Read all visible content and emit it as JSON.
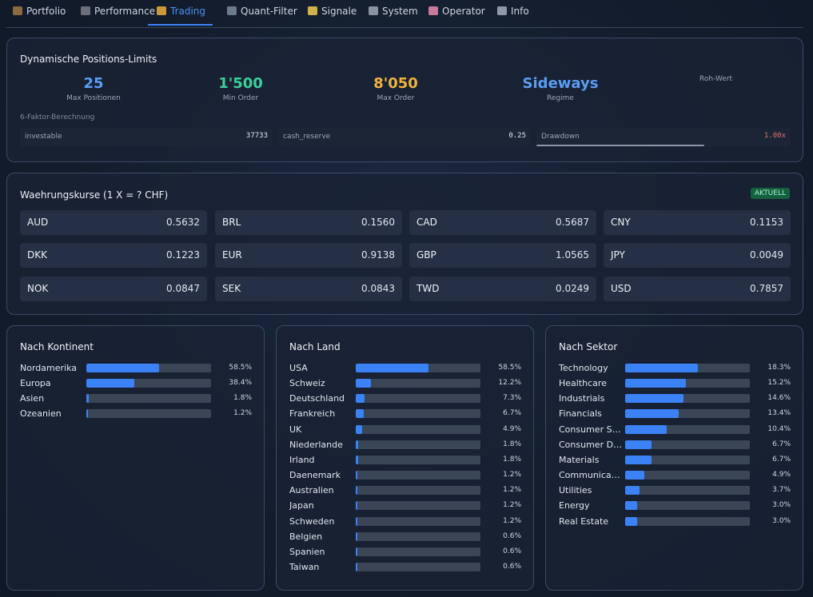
{
  "nav": {
    "tabs": [
      {
        "label": "Portfolio",
        "icon": "briefcase-icon",
        "icon_color": "#8a6a3e",
        "active": false
      },
      {
        "label": "Performance",
        "icon": "chart-icon",
        "icon_color": "#6b6f7a",
        "active": false
      },
      {
        "label": "Trading",
        "icon": "money-bag-icon",
        "icon_color": "#c99a3a",
        "active": true
      },
      {
        "label": "Quant-Filter",
        "icon": "bar-chart-icon",
        "icon_color": "#6b7a8c",
        "active": false
      },
      {
        "label": "Signale",
        "icon": "lightbulb-icon",
        "icon_color": "#d1b24a",
        "active": false
      },
      {
        "label": "System",
        "icon": "gear-icon",
        "icon_color": "#8b93a0",
        "active": false
      },
      {
        "label": "Operator",
        "icon": "brain-icon",
        "icon_color": "#c77a9a",
        "active": false
      },
      {
        "label": "Info",
        "icon": "book-icon",
        "icon_color": "#8f98a6",
        "active": false
      }
    ]
  },
  "limits": {
    "title": "Dynamische Positions-Limits",
    "metrics": [
      {
        "value": "25",
        "label": "Max Positionen",
        "color": "#5b9df5"
      },
      {
        "value": "1'500",
        "label": "Min Order",
        "color": "#3ccf9a"
      },
      {
        "value": "8'050",
        "label": "Max Order",
        "color": "#f0b23e"
      },
      {
        "value": "Sideways",
        "label": "Regime",
        "color": "#5b9df5"
      }
    ],
    "roh_wert_label": "Roh-Wert",
    "factor_label": "6-Faktor-Berechnung",
    "factors": [
      {
        "name": "investable",
        "value": "37733",
        "value_color": "#dfe6ef",
        "progress": null
      },
      {
        "name": "cash_reserve",
        "value": "0.25",
        "value_color": "#dfe6ef",
        "progress": null
      },
      {
        "name": "Drawdown",
        "value": "1.00x",
        "value_color": "#e07070",
        "progress": 0.66
      }
    ]
  },
  "fx": {
    "title": "Waehrungskurse (1 X = ? CHF)",
    "badge": "AKTUELL",
    "rates": [
      {
        "code": "AUD",
        "rate": "0.5632"
      },
      {
        "code": "BRL",
        "rate": "0.1560"
      },
      {
        "code": "CAD",
        "rate": "0.5687"
      },
      {
        "code": "CNY",
        "rate": "0.1153"
      },
      {
        "code": "DKK",
        "rate": "0.1223"
      },
      {
        "code": "EUR",
        "rate": "0.9138"
      },
      {
        "code": "GBP",
        "rate": "1.0565"
      },
      {
        "code": "JPY",
        "rate": "0.0049"
      },
      {
        "code": "NOK",
        "rate": "0.0847"
      },
      {
        "code": "SEK",
        "rate": "0.0843"
      },
      {
        "code": "TWD",
        "rate": "0.0249"
      },
      {
        "code": "USD",
        "rate": "0.7857"
      }
    ]
  },
  "distributions": [
    {
      "title": "Nach Kontinent",
      "items": [
        {
          "label": "Nordamerika",
          "pct": "58.5%",
          "value": 58.5
        },
        {
          "label": "Europa",
          "pct": "38.4%",
          "value": 38.4
        },
        {
          "label": "Asien",
          "pct": "1.8%",
          "value": 1.8
        },
        {
          "label": "Ozeanien",
          "pct": "1.2%",
          "value": 1.2
        }
      ]
    },
    {
      "title": "Nach Land",
      "items": [
        {
          "label": "USA",
          "pct": "58.5%",
          "value": 58.5
        },
        {
          "label": "Schweiz",
          "pct": "12.2%",
          "value": 12.2
        },
        {
          "label": "Deutschland",
          "pct": "7.3%",
          "value": 7.3
        },
        {
          "label": "Frankreich",
          "pct": "6.7%",
          "value": 6.7
        },
        {
          "label": "UK",
          "pct": "4.9%",
          "value": 4.9
        },
        {
          "label": "Niederlande",
          "pct": "1.8%",
          "value": 1.8
        },
        {
          "label": "Irland",
          "pct": "1.8%",
          "value": 1.8
        },
        {
          "label": "Daenemark",
          "pct": "1.2%",
          "value": 1.2
        },
        {
          "label": "Australien",
          "pct": "1.2%",
          "value": 1.2
        },
        {
          "label": "Japan",
          "pct": "1.2%",
          "value": 1.2
        },
        {
          "label": "Schweden",
          "pct": "1.2%",
          "value": 1.2
        },
        {
          "label": "Belgien",
          "pct": "0.6%",
          "value": 0.6
        },
        {
          "label": "Spanien",
          "pct": "0.6%",
          "value": 0.6
        },
        {
          "label": "Taiwan",
          "pct": "0.6%",
          "value": 0.6
        }
      ]
    },
    {
      "title": "Nach Sektor",
      "items": [
        {
          "label": "Technology",
          "pct": "18.3%",
          "value": 18.3
        },
        {
          "label": "Healthcare",
          "pct": "15.2%",
          "value": 15.2
        },
        {
          "label": "Industrials",
          "pct": "14.6%",
          "value": 14.6
        },
        {
          "label": "Financials",
          "pct": "13.4%",
          "value": 13.4
        },
        {
          "label": "Consumer St...",
          "pct": "10.4%",
          "value": 10.4
        },
        {
          "label": "Consumer Di...",
          "pct": "6.7%",
          "value": 6.7
        },
        {
          "label": "Materials",
          "pct": "6.7%",
          "value": 6.7
        },
        {
          "label": "Communicat...",
          "pct": "4.9%",
          "value": 4.9
        },
        {
          "label": "Utilities",
          "pct": "3.7%",
          "value": 3.7
        },
        {
          "label": "Energy",
          "pct": "3.0%",
          "value": 3.0
        },
        {
          "label": "Real Estate",
          "pct": "3.0%",
          "value": 3.0
        }
      ]
    }
  ]
}
